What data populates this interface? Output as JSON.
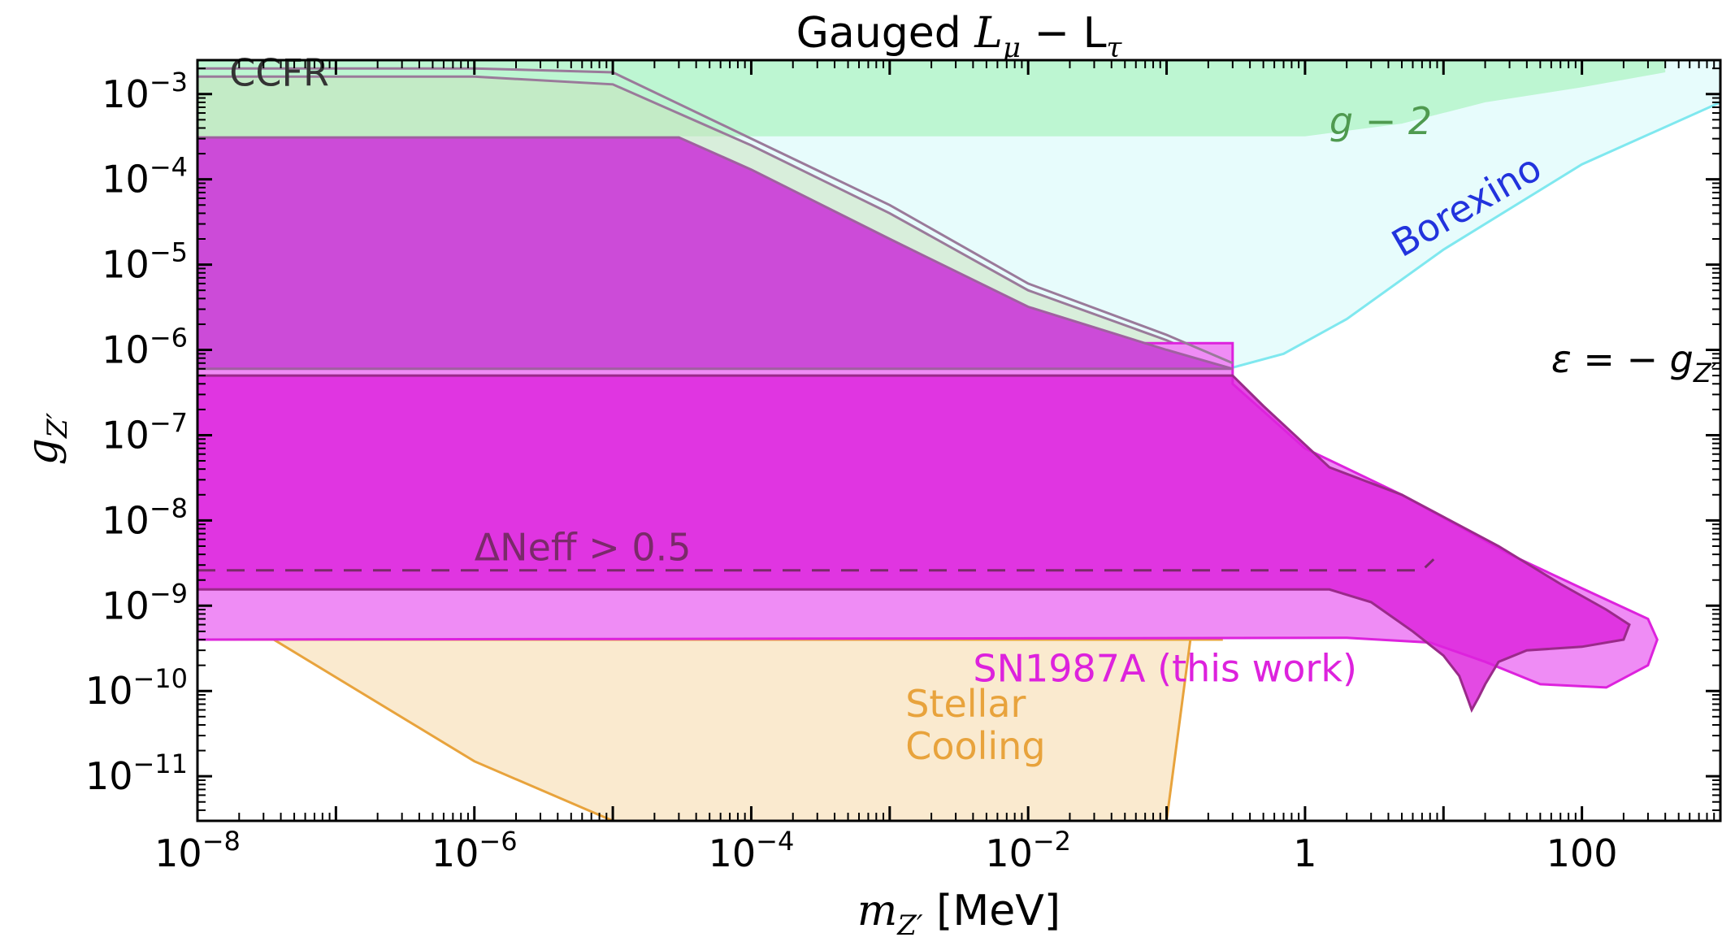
{
  "chart_data": {
    "type": "area",
    "title_prefix": "Gauged ",
    "title_math": "L",
    "title_sub1": "μ",
    "title_mid": " − L",
    "title_sub2": "τ",
    "xlabel_math": "m",
    "xlabel_sub": "Z′",
    "xlabel_unit": " [MeV]",
    "ylabel_math": "g",
    "ylabel_sub": "Z′",
    "xscale": "log",
    "yscale": "log",
    "xlim": [
      1e-08,
      1000
    ],
    "ylim": [
      3e-12,
      0.0025
    ],
    "x_ticks": [
      {
        "value": 1e-08,
        "base": "10",
        "exp": "−8"
      },
      {
        "value": 1e-06,
        "base": "10",
        "exp": "−6"
      },
      {
        "value": 0.0001,
        "base": "10",
        "exp": "−4"
      },
      {
        "value": 0.01,
        "base": "10",
        "exp": "−2"
      },
      {
        "value": 1,
        "base": "1",
        "exp": ""
      },
      {
        "value": 100,
        "base": "100",
        "exp": ""
      }
    ],
    "y_ticks": [
      {
        "value": 0.001,
        "base": "10",
        "exp": "−3"
      },
      {
        "value": 0.0001,
        "base": "10",
        "exp": "−4"
      },
      {
        "value": 1e-05,
        "base": "10",
        "exp": "−5"
      },
      {
        "value": 1e-06,
        "base": "10",
        "exp": "−6"
      },
      {
        "value": 1e-07,
        "base": "10",
        "exp": "−7"
      },
      {
        "value": 1e-08,
        "base": "10",
        "exp": "−8"
      },
      {
        "value": 1e-09,
        "base": "10",
        "exp": "−9"
      },
      {
        "value": 1e-10,
        "base": "10",
        "exp": "−10"
      },
      {
        "value": 1e-11,
        "base": "10",
        "exp": "−11"
      }
    ],
    "grid": false,
    "regions": [
      {
        "name": "Stellar Cooling",
        "label_lines": [
          "Stellar",
          "Cooling"
        ],
        "fill": "#f5d9a8",
        "fill_opacity": 0.55,
        "stroke": "#e8a33c",
        "label_color": "#e8a33c",
        "label_pos": [
          0.0013,
          5e-11
        ],
        "polygon": [
          [
            1e-08,
            1.4e-09
          ],
          [
            1e-06,
            1.5e-11
          ],
          [
            1e-05,
            3e-12
          ],
          [
            0.1,
            3e-12
          ],
          [
            0.16,
            1e-09
          ],
          [
            0.22,
            1e-07
          ],
          [
            0.25,
            3.5e-07
          ],
          [
            0.25,
            4e-10
          ],
          [
            1e-08,
            4e-10
          ]
        ]
      },
      {
        "name": "g − 2",
        "label": "g − 2",
        "fill": "#90ee90",
        "fill_opacity": 0.95,
        "stroke": "none",
        "label_color": "#4f9a4f",
        "label_pos": [
          1.5,
          0.00034
        ],
        "polygon": [
          [
            1e-08,
            0.0025
          ],
          [
            400,
            0.0025
          ],
          [
            400,
            0.0018
          ],
          [
            100,
            0.0012
          ],
          [
            20,
            0.0008
          ],
          [
            5,
            0.00045
          ],
          [
            1,
            0.00032
          ],
          [
            1e-08,
            0.00032
          ]
        ]
      },
      {
        "name": "Borexino",
        "label": "Borexino",
        "fill": "#d7fafa",
        "fill_opacity": 0.6,
        "stroke": "#7fe8ef",
        "label_color": "#2233dd",
        "label_pos": [
          5,
          1.2e-05
        ],
        "label_rotation": -30,
        "polygon": [
          [
            1e-08,
            5.5e-07
          ],
          [
            0.1,
            5.8e-07
          ],
          [
            0.3,
            6.2e-07
          ],
          [
            0.7,
            9e-07
          ],
          [
            2,
            2.3e-06
          ],
          [
            10,
            1.5e-05
          ],
          [
            100,
            0.00015
          ],
          [
            1000,
            0.0008
          ],
          [
            1000,
            0.0025
          ],
          [
            1e-08,
            0.0025
          ]
        ]
      },
      {
        "name": "CCFR",
        "label": "CCFR",
        "fill": "#c9dfb9",
        "fill_opacity": 0.5,
        "stroke": "#9a7a9a",
        "label_color": "#333333",
        "label_pos": [
          1.7e-08,
          0.00125
        ],
        "polygon": [
          [
            1e-08,
            0.0016
          ],
          [
            1e-06,
            0.0016
          ],
          [
            1e-05,
            0.0013
          ],
          [
            0.0001,
            0.00025
          ],
          [
            0.001,
            4e-05
          ],
          [
            0.01,
            5e-06
          ],
          [
            0.1,
            1.3e-06
          ],
          [
            0.3,
            6e-07
          ],
          [
            1e-08,
            6e-07
          ]
        ]
      },
      {
        "name": "SN1987A (this work)",
        "label": "SN1987A (this work)",
        "fill": "#ef8cf5",
        "fill_opacity": 1.0,
        "stroke": "#dd22dd",
        "label_color": "#dd22dd",
        "label_pos": [
          0.004,
          1.3e-10
        ],
        "polygon": [
          [
            1e-08,
            4e-10
          ],
          [
            2,
            4.2e-10
          ],
          [
            8,
            3.7e-10
          ],
          [
            20,
            2.2e-10
          ],
          [
            50,
            1.2e-10
          ],
          [
            150,
            1.1e-10
          ],
          [
            300,
            2e-10
          ],
          [
            350,
            4e-10
          ],
          [
            300,
            7e-10
          ],
          [
            100,
            1.6e-09
          ],
          [
            30,
            4e-09
          ],
          [
            5,
            2e-08
          ],
          [
            1,
            7e-08
          ],
          [
            0.3,
            4e-07
          ],
          [
            0.3,
            1.2e-06
          ],
          [
            1e-08,
            1.2e-06
          ]
        ]
      },
      {
        "name": "SN1987A inner",
        "fill": "#dd22dd",
        "fill_opacity": 0.82,
        "stroke": "#9a2a8a",
        "polygon": [
          [
            1e-08,
            1.55e-09
          ],
          [
            1.5,
            1.55e-09
          ],
          [
            3,
            1.1e-09
          ],
          [
            6,
            5e-10
          ],
          [
            10,
            2.6e-10
          ],
          [
            13,
            1.5e-10
          ],
          [
            15,
            8e-11
          ],
          [
            16,
            6e-11
          ],
          [
            18,
            8.5e-11
          ],
          [
            20,
            1.2e-10
          ],
          [
            25,
            2.2e-10
          ],
          [
            40,
            3e-10
          ],
          [
            100,
            3.3e-10
          ],
          [
            200,
            4e-10
          ],
          [
            220,
            6e-10
          ],
          [
            150,
            9e-10
          ],
          [
            70,
            1.8e-09
          ],
          [
            25,
            5e-09
          ],
          [
            5,
            2e-08
          ],
          [
            1.5,
            4.2e-08
          ],
          [
            0.5,
            2.2e-07
          ],
          [
            0.3,
            5e-07
          ],
          [
            1e-08,
            5e-07
          ]
        ]
      },
      {
        "name": "SN1987A upper",
        "fill": "#cc4bd8",
        "fill_opacity": 1.0,
        "stroke": "#a060a0",
        "polygon": [
          [
            1e-08,
            0.00031
          ],
          [
            1e-05,
            0.00031
          ],
          [
            3e-05,
            0.00031
          ],
          [
            0.0001,
            0.00013
          ],
          [
            0.001,
            2e-05
          ],
          [
            0.01,
            3.2e-06
          ],
          [
            0.1,
            1e-06
          ],
          [
            0.3,
            6e-07
          ],
          [
            1e-08,
            6e-07
          ]
        ]
      }
    ],
    "lines": [
      {
        "name": "ΔNeff > 0.5",
        "label": "ΔNeff  >  0.5",
        "color": "#7a2a6a",
        "dash": "22,14",
        "label_color": "#7a2a6a",
        "label_pos": [
          1e-06,
          3.4e-09
        ],
        "points": [
          [
            1e-08,
            2.6e-09
          ],
          [
            7,
            2.6e-09
          ],
          [
            8.5,
            3.5e-09
          ]
        ]
      },
      {
        "name": "CCFR upper edge",
        "color": "#9a7a9a",
        "dash": "",
        "points": [
          [
            1e-08,
            0.002
          ],
          [
            1e-06,
            0.002
          ],
          [
            1e-05,
            0.0018
          ],
          [
            0.0001,
            0.0003
          ],
          [
            0.001,
            5e-05
          ],
          [
            0.01,
            6e-06
          ],
          [
            0.1,
            1.5e-06
          ],
          [
            0.3,
            7e-07
          ]
        ]
      }
    ],
    "annotations": [
      {
        "name": "epsilon-relation",
        "text_math": "ε = − g",
        "sub": "Z′",
        "pos": [
          60,
          5.5e-07
        ]
      }
    ]
  }
}
